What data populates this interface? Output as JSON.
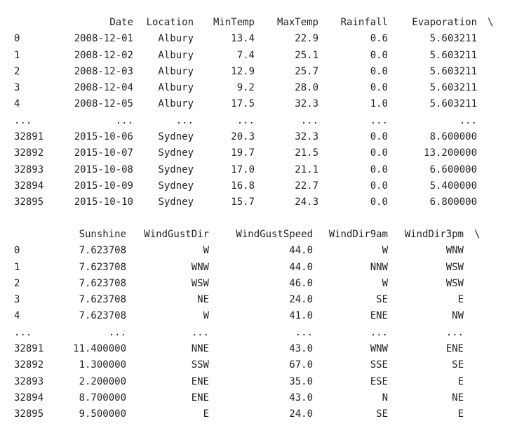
{
  "output": {
    "block1": {
      "headers": [
        "",
        "Date",
        "Location",
        "MinTemp",
        "MaxTemp",
        "Rainfall",
        "Evaporation",
        "\\"
      ],
      "rows": [
        [
          "0",
          "2008-12-01",
          "Albury",
          "13.4",
          "22.9",
          "0.6",
          "5.603211"
        ],
        [
          "1",
          "2008-12-02",
          "Albury",
          "7.4",
          "25.1",
          "0.0",
          "5.603211"
        ],
        [
          "2",
          "2008-12-03",
          "Albury",
          "12.9",
          "25.7",
          "0.0",
          "5.603211"
        ],
        [
          "3",
          "2008-12-04",
          "Albury",
          "9.2",
          "28.0",
          "0.0",
          "5.603211"
        ],
        [
          "4",
          "2008-12-05",
          "Albury",
          "17.5",
          "32.3",
          "1.0",
          "5.603211"
        ],
        [
          "...",
          "...",
          "...",
          "...",
          "...",
          "...",
          "..."
        ],
        [
          "32891",
          "2015-10-06",
          "Sydney",
          "20.3",
          "32.3",
          "0.0",
          "8.600000"
        ],
        [
          "32892",
          "2015-10-07",
          "Sydney",
          "19.7",
          "21.5",
          "0.0",
          "13.200000"
        ],
        [
          "32893",
          "2015-10-08",
          "Sydney",
          "17.0",
          "21.1",
          "0.0",
          "6.600000"
        ],
        [
          "32894",
          "2015-10-09",
          "Sydney",
          "16.8",
          "22.7",
          "0.0",
          "5.400000"
        ],
        [
          "32895",
          "2015-10-10",
          "Sydney",
          "15.7",
          "24.3",
          "0.0",
          "6.800000"
        ]
      ]
    },
    "block2": {
      "headers": [
        "",
        "Sunshine",
        "WindGustDir",
        "WindGustSpeed",
        "WindDir9am",
        "WindDir3pm",
        "\\"
      ],
      "rows": [
        [
          "0",
          "7.623708",
          "W",
          "44.0",
          "W",
          "WNW"
        ],
        [
          "1",
          "7.623708",
          "WNW",
          "44.0",
          "NNW",
          "WSW"
        ],
        [
          "2",
          "7.623708",
          "WSW",
          "46.0",
          "W",
          "WSW"
        ],
        [
          "3",
          "7.623708",
          "NE",
          "24.0",
          "SE",
          "E"
        ],
        [
          "4",
          "7.623708",
          "W",
          "41.0",
          "ENE",
          "NW"
        ],
        [
          "...",
          "...",
          "...",
          "...",
          "...",
          "..."
        ],
        [
          "32891",
          "11.400000",
          "NNE",
          "43.0",
          "WNW",
          "ENE"
        ],
        [
          "32892",
          "1.300000",
          "SSW",
          "67.0",
          "SSE",
          "SE"
        ],
        [
          "32893",
          "2.200000",
          "ENE",
          "35.0",
          "ESE",
          "E"
        ],
        [
          "32894",
          "8.700000",
          "ENE",
          "43.0",
          "N",
          "NE"
        ],
        [
          "32895",
          "9.500000",
          "E",
          "24.0",
          "SE",
          "E"
        ]
      ]
    }
  }
}
